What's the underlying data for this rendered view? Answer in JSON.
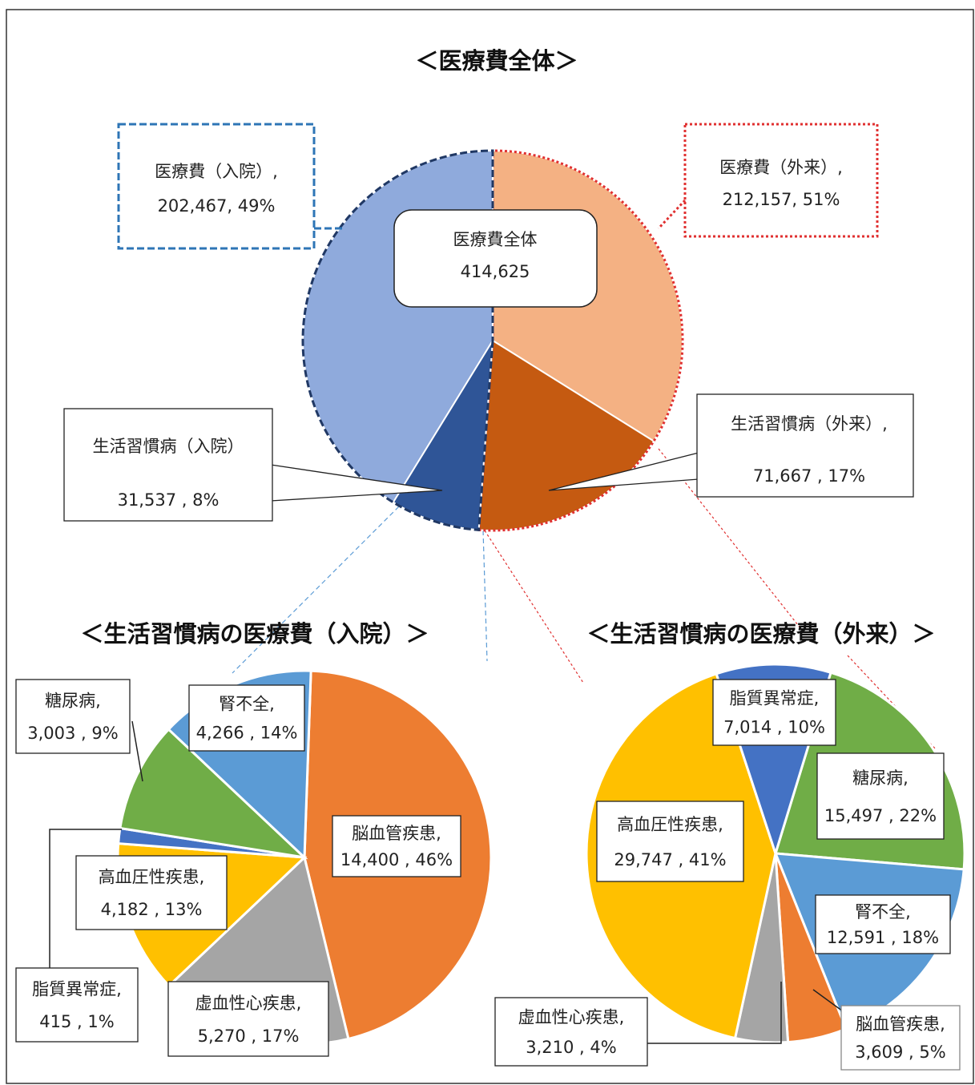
{
  "chart_data": [
    {
      "type": "pie",
      "title": "＜医療費全体＞",
      "center_label": "医療費全体",
      "total": 414625,
      "total_label": "414,625",
      "categories": [
        "医療費（外来）,",
        "医療費（入院）,"
      ],
      "values": [
        212157,
        202467
      ],
      "value_labels": [
        "212,157, 51%",
        "202,467, 49%"
      ],
      "colors": [
        "#f4b183",
        "#8faadc"
      ],
      "subcategories": [
        "生活習慣病（外来）,",
        "生活習慣病（入院）"
      ],
      "subvalues": [
        71667,
        31537
      ],
      "sub_value_labels": [
        "71,667 , 17%",
        "31,537 , 8%"
      ],
      "subcolors": [
        "#c55a11",
        "#2f5597"
      ]
    },
    {
      "type": "pie",
      "title": "＜生活習慣病の医療費（入院）＞",
      "categories": [
        "脳血管疾患,",
        "虚血性心疾患,",
        "高血圧性疾患,",
        "脂質異常症,",
        "糖尿病,",
        "腎不全,"
      ],
      "values": [
        14400,
        5270,
        4182,
        415,
        3003,
        4266
      ],
      "value_labels": [
        "14,400 , 46%",
        "5,270 , 17%",
        "4,182 , 13%",
        "415 , 1%",
        "3,003 , 9%",
        "4,266 , 14%"
      ],
      "colors": [
        "#ed7d31",
        "#a5a5a5",
        "#ffc000",
        "#4472c4",
        "#70ad47",
        "#5b9bd5"
      ]
    },
    {
      "type": "pie",
      "title": "＜生活習慣病の医療費（外来）＞",
      "categories": [
        "糖尿病,",
        "腎不全,",
        "脳血管疾患,",
        "虚血性心疾患,",
        "高血圧性疾患,",
        "脂質異常症,"
      ],
      "values": [
        15497,
        12591,
        3609,
        3210,
        29747,
        7014
      ],
      "value_labels": [
        "15,497 , 22%",
        "12,591 , 18%",
        "3,609 , 5%",
        "3,210 , 4%",
        "29,747 , 41%",
        "7,014 , 10%"
      ],
      "colors": [
        "#70ad47",
        "#5b9bd5",
        "#ed7d31",
        "#a5a5a5",
        "#ffc000",
        "#4472c4"
      ]
    }
  ]
}
